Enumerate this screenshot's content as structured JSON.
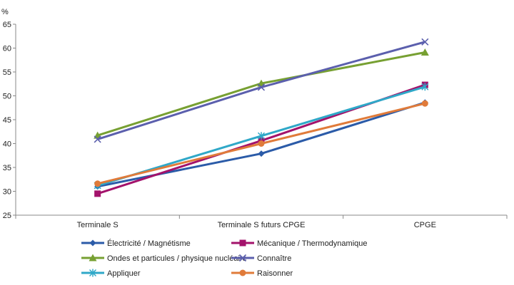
{
  "chart_data": {
    "type": "line",
    "ylabel_unit": "%",
    "categories": [
      "Terminale S",
      "Terminale S futurs CPGE",
      "CPGE"
    ],
    "ylim": [
      25,
      65
    ],
    "yticks": [
      25,
      30,
      35,
      40,
      45,
      50,
      55,
      60,
      65
    ],
    "grid": false,
    "legend_position": "bottom",
    "series": [
      {
        "name": "Électricité / Magnétisme",
        "color": "#2B5BA8",
        "marker": "diamond",
        "values": [
          31.0,
          37.9,
          48.6
        ]
      },
      {
        "name": "Mécanique / Thermodynamique",
        "color": "#A3126B",
        "marker": "square",
        "values": [
          29.5,
          40.6,
          52.3
        ]
      },
      {
        "name": "Ondes et particules / physique nucléaire",
        "color": "#77A032",
        "marker": "triangle",
        "values": [
          41.7,
          52.6,
          59.1
        ]
      },
      {
        "name": "Connaître",
        "color": "#5B5FAD",
        "marker": "x",
        "values": [
          40.9,
          51.8,
          61.3
        ]
      },
      {
        "name": "Appliquer",
        "color": "#2FA8C8",
        "marker": "star",
        "values": [
          31.2,
          41.6,
          51.9
        ]
      },
      {
        "name": "Raisonner",
        "color": "#E07B3A",
        "marker": "circle",
        "values": [
          31.6,
          40.0,
          48.4
        ]
      }
    ]
  }
}
